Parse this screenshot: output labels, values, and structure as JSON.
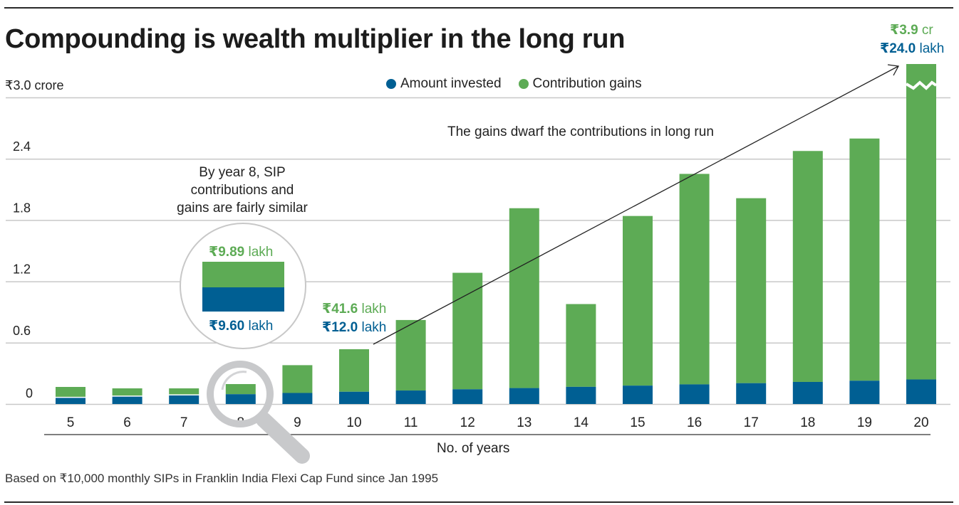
{
  "title": "Compounding is wealth multiplier in the long run",
  "footnote": "Based on ₹10,000 monthly SIPs in Franklin India Flexi Cap Fund since Jan 1995",
  "colors": {
    "invested": "#005f93",
    "gains": "#5dab55",
    "grid": "#c8c8c8",
    "axis": "#555555"
  },
  "annotations": {
    "year8_note": [
      "By year 8, SIP",
      "contributions and",
      "gains are fairly similar"
    ],
    "long_run_note": "The gains dwarf the contributions in long run",
    "year8_gains": {
      "amount": "₹9.89",
      "unit": "lakh"
    },
    "year8_invested": {
      "amount": "₹9.60",
      "unit": "lakh"
    },
    "year10_gains": {
      "amount": "₹41.6",
      "unit": "lakh"
    },
    "year10_invested": {
      "amount": "₹12.0",
      "unit": "lakh"
    },
    "year20_gains": {
      "amount": "₹3.9",
      "unit": "cr"
    },
    "year20_invested": {
      "amount": "₹24.0",
      "unit": "lakh"
    },
    "magnifier_icon": "magnifying-glass-icon",
    "break_marker": "axis-break-icon"
  },
  "chart_data": {
    "type": "bar",
    "stacked": true,
    "title": "Compounding is wealth multiplier in the long run",
    "xlabel": "No. of years",
    "ylabel": "₹ crore",
    "ylim": [
      0,
      3.0
    ],
    "yticks": [
      0,
      0.6,
      1.2,
      1.8,
      2.4,
      3.0
    ],
    "ytick_labels": [
      "0",
      "0.6",
      "1.2",
      "1.8",
      "2.4",
      "₹3.0 crore"
    ],
    "grid": true,
    "legend": {
      "placement": "top-center",
      "entries": [
        "Amount invested",
        "Contribution gains"
      ]
    },
    "categories": [
      "5",
      "6",
      "7",
      "8",
      "9",
      "10",
      "11",
      "12",
      "13",
      "14",
      "15",
      "16",
      "17",
      "18",
      "19",
      "20"
    ],
    "series": [
      {
        "name": "Amount invested",
        "color": "#005f93",
        "values": [
          0.06,
          0.072,
          0.084,
          0.096,
          0.108,
          0.12,
          0.132,
          0.144,
          0.156,
          0.168,
          0.18,
          0.192,
          0.204,
          0.216,
          0.228,
          0.24
        ]
      },
      {
        "name": "Contribution gains",
        "color": "#5dab55",
        "values": [
          0.107,
          0.081,
          0.069,
          0.099,
          0.272,
          0.416,
          0.69,
          1.14,
          1.76,
          0.81,
          1.66,
          2.06,
          1.81,
          2.26,
          2.37,
          3.9
        ]
      }
    ],
    "broken_bars": [
      "20"
    ]
  }
}
